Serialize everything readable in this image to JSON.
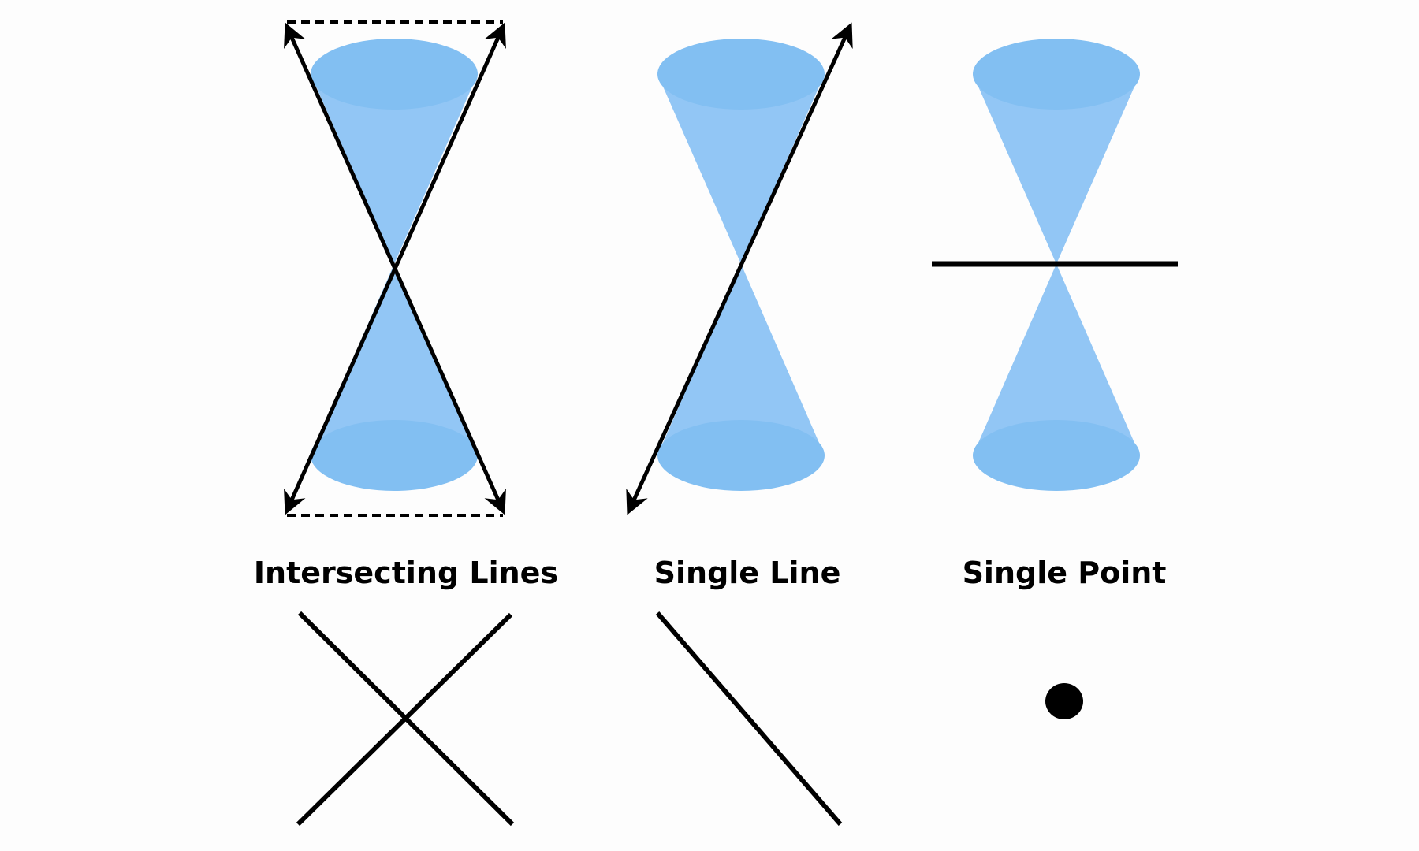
{
  "colors": {
    "background": "#fdfdfd",
    "cone_body": "#92c6f5",
    "cone_cap": "#82bff2",
    "line": "#000000"
  },
  "panels": [
    {
      "id": "intersecting",
      "caption": "Intersecting Lines",
      "section_type": "two-lines-through-vertex",
      "result_shape": "x-cross",
      "arrowheads": true,
      "dashed_guides": true
    },
    {
      "id": "single-line",
      "caption": "Single Line",
      "section_type": "tangent-line-through-vertex",
      "result_shape": "single-diagonal-line",
      "arrowheads": true,
      "dashed_guides": false
    },
    {
      "id": "single-point",
      "caption": "Single Point",
      "section_type": "horizontal-plane-through-vertex",
      "result_shape": "dot",
      "arrowheads": false,
      "dashed_guides": false
    }
  ]
}
